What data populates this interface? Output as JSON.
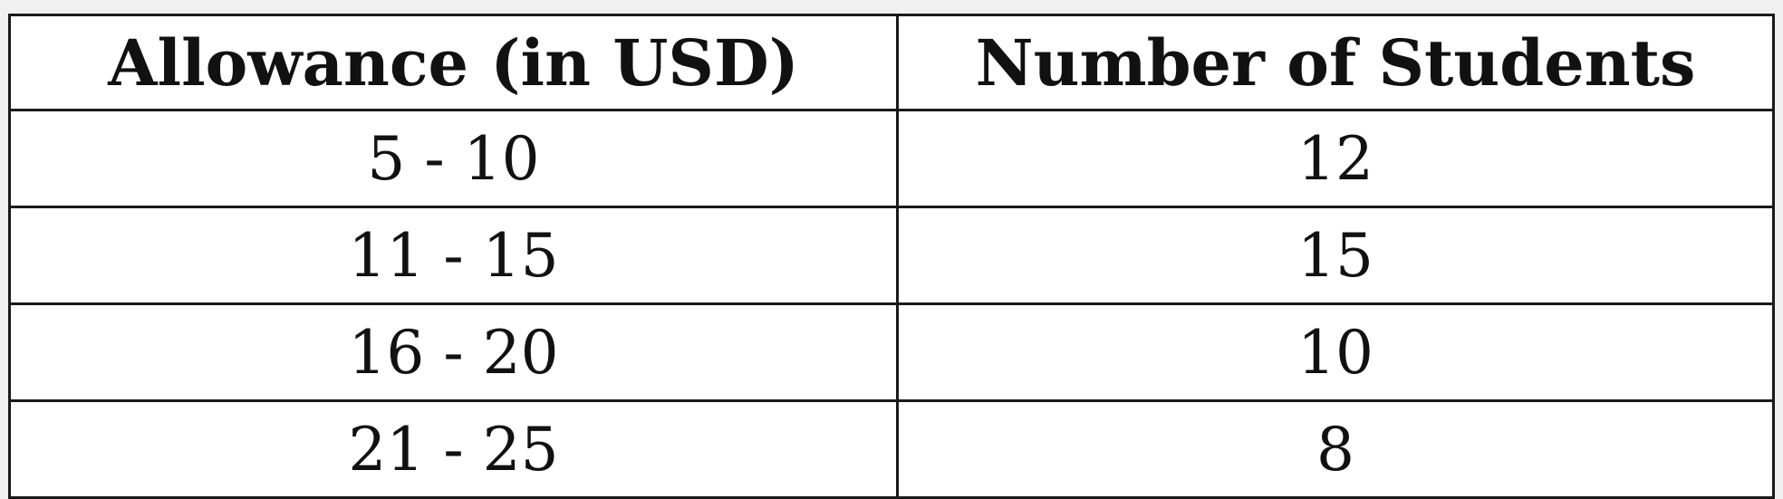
{
  "table": {
    "headers": [
      "Allowance (in USD)",
      "Number of Students"
    ],
    "rows": [
      [
        "5 - 10",
        "12"
      ],
      [
        "11 - 15",
        "15"
      ],
      [
        "16 - 20",
        "10"
      ],
      [
        "21 - 25",
        "8"
      ]
    ]
  }
}
